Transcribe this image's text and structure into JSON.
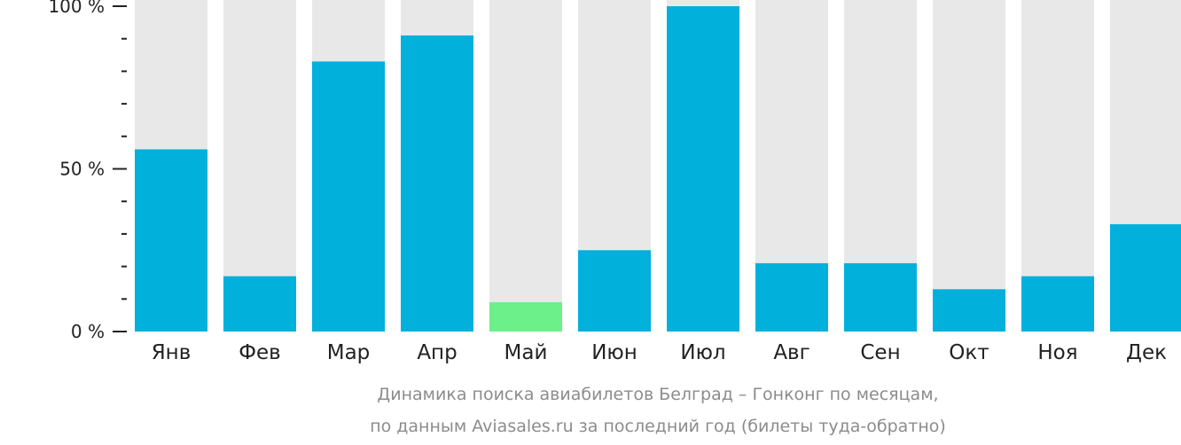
{
  "chart_data": {
    "type": "bar",
    "categories": [
      "Янв",
      "Фев",
      "Мар",
      "Апр",
      "Май",
      "Июн",
      "Июл",
      "Авг",
      "Сен",
      "Окт",
      "Ноя",
      "Дек"
    ],
    "values": [
      56,
      17,
      83,
      91,
      9,
      25,
      100,
      21,
      21,
      13,
      17,
      33
    ],
    "ylim": [
      0,
      100
    ],
    "y_ticks": [
      "0 %",
      "50 %",
      "100 %"
    ],
    "highlight_category": "Май",
    "caption": [
      "Динамика поиска авиабилетов Белград – Гонконг по месяцам,",
      "по данным Aviasales.ru за последний год (билеты туда-обратно)"
    ],
    "colors": {
      "bar": "#02b0dc",
      "bar_highlight": "#6cf089",
      "bar_background": "#e8e8e8",
      "axis": "#222222",
      "caption": "#8c8c8c"
    }
  }
}
